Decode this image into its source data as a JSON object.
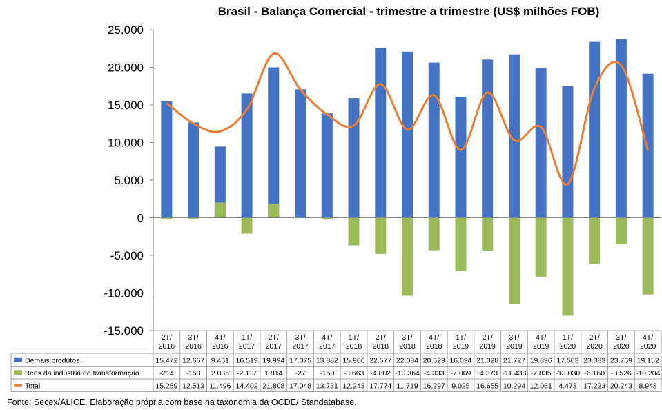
{
  "chart_data": {
    "type": "bar",
    "title": "Brasil - Balança Comercial - trimestre a trimestre (US$ milhões FOB)",
    "categories": [
      "2T/ 2016",
      "3T/ 2016",
      "4T/ 2016",
      "1T/ 2017",
      "2T/ 2017",
      "3T/ 2017",
      "4T/ 2017",
      "1T/ 2018",
      "2T/ 2018",
      "3T/ 2018",
      "4T/ 2018",
      "1T/ 2019",
      "2T/ 2019",
      "3T/ 2019",
      "4T/ 2019",
      "1T/ 2020",
      "2T/ 2020",
      "3T/ 2020",
      "4T/ 2020"
    ],
    "ylim": [
      -15000,
      25000
    ],
    "yticks": [
      25000,
      20000,
      15000,
      10000,
      5000,
      0,
      -5000,
      -10000,
      -15000
    ],
    "ytick_labels": [
      "25.000",
      "20.000",
      "15.000",
      "10.000",
      "5.000",
      "0",
      "-5.000",
      "-10.000",
      "-15.000"
    ],
    "series": [
      {
        "name": "Demais produtos",
        "kind": "bar",
        "color": "#4472C4",
        "values": [
          15472,
          12667,
          9461,
          16519,
          19994,
          17075,
          13882,
          15906,
          22577,
          22084,
          20629,
          16094,
          21028,
          21727,
          19896,
          17503,
          23383,
          23769,
          19152
        ],
        "labels": [
          "15.472",
          "12.667",
          "9.461",
          "16.519",
          "19.994",
          "17.075",
          "13.882",
          "15.906",
          "22.577",
          "22.084",
          "20.629",
          "16.094",
          "21.028",
          "21.727",
          "19.896",
          "17.503",
          "23.383",
          "23.769",
          "19.152"
        ]
      },
      {
        "name": "Bens da indústria de transformação",
        "kind": "bar",
        "color": "#9BBB59",
        "values": [
          -214,
          -153,
          2035,
          -2117,
          1814,
          -27,
          -150,
          -3663,
          -4802,
          -10364,
          -4333,
          -7069,
          -4373,
          -11433,
          -7835,
          -13030,
          -6160,
          -3526,
          -10204
        ],
        "labels": [
          "-214",
          "-153",
          "2.035",
          "-2.117",
          "1.814",
          "-27",
          "-150",
          "-3.663",
          "-4.802",
          "-10.364",
          "-4.333",
          "-7.069",
          "-4.373",
          "-11.433",
          "-7.835",
          "-13.030",
          "-6.160",
          "-3.526",
          "-10.204"
        ]
      },
      {
        "name": "Total",
        "kind": "line",
        "color": "#ED7D31",
        "values": [
          15259,
          12513,
          11496,
          14402,
          21808,
          17048,
          13731,
          12243,
          17774,
          11719,
          16297,
          9025,
          16655,
          10294,
          12061,
          4473,
          17223,
          20243,
          8948
        ],
        "labels": [
          "15.259",
          "12.513",
          "11.496",
          "14.402",
          "21.808",
          "17.048",
          "13.731",
          "12.243",
          "17.774",
          "11.719",
          "16.297",
          "9.025",
          "16.655",
          "10.294",
          "12.061",
          "4.473",
          "17.223",
          "20.243",
          "8.948"
        ]
      }
    ],
    "grid": false,
    "legend": "data-table"
  },
  "source_note": "Fonte: Secex/ALICE. Elaboração própria com base na taxonomia da OCDE/ Standatabase."
}
